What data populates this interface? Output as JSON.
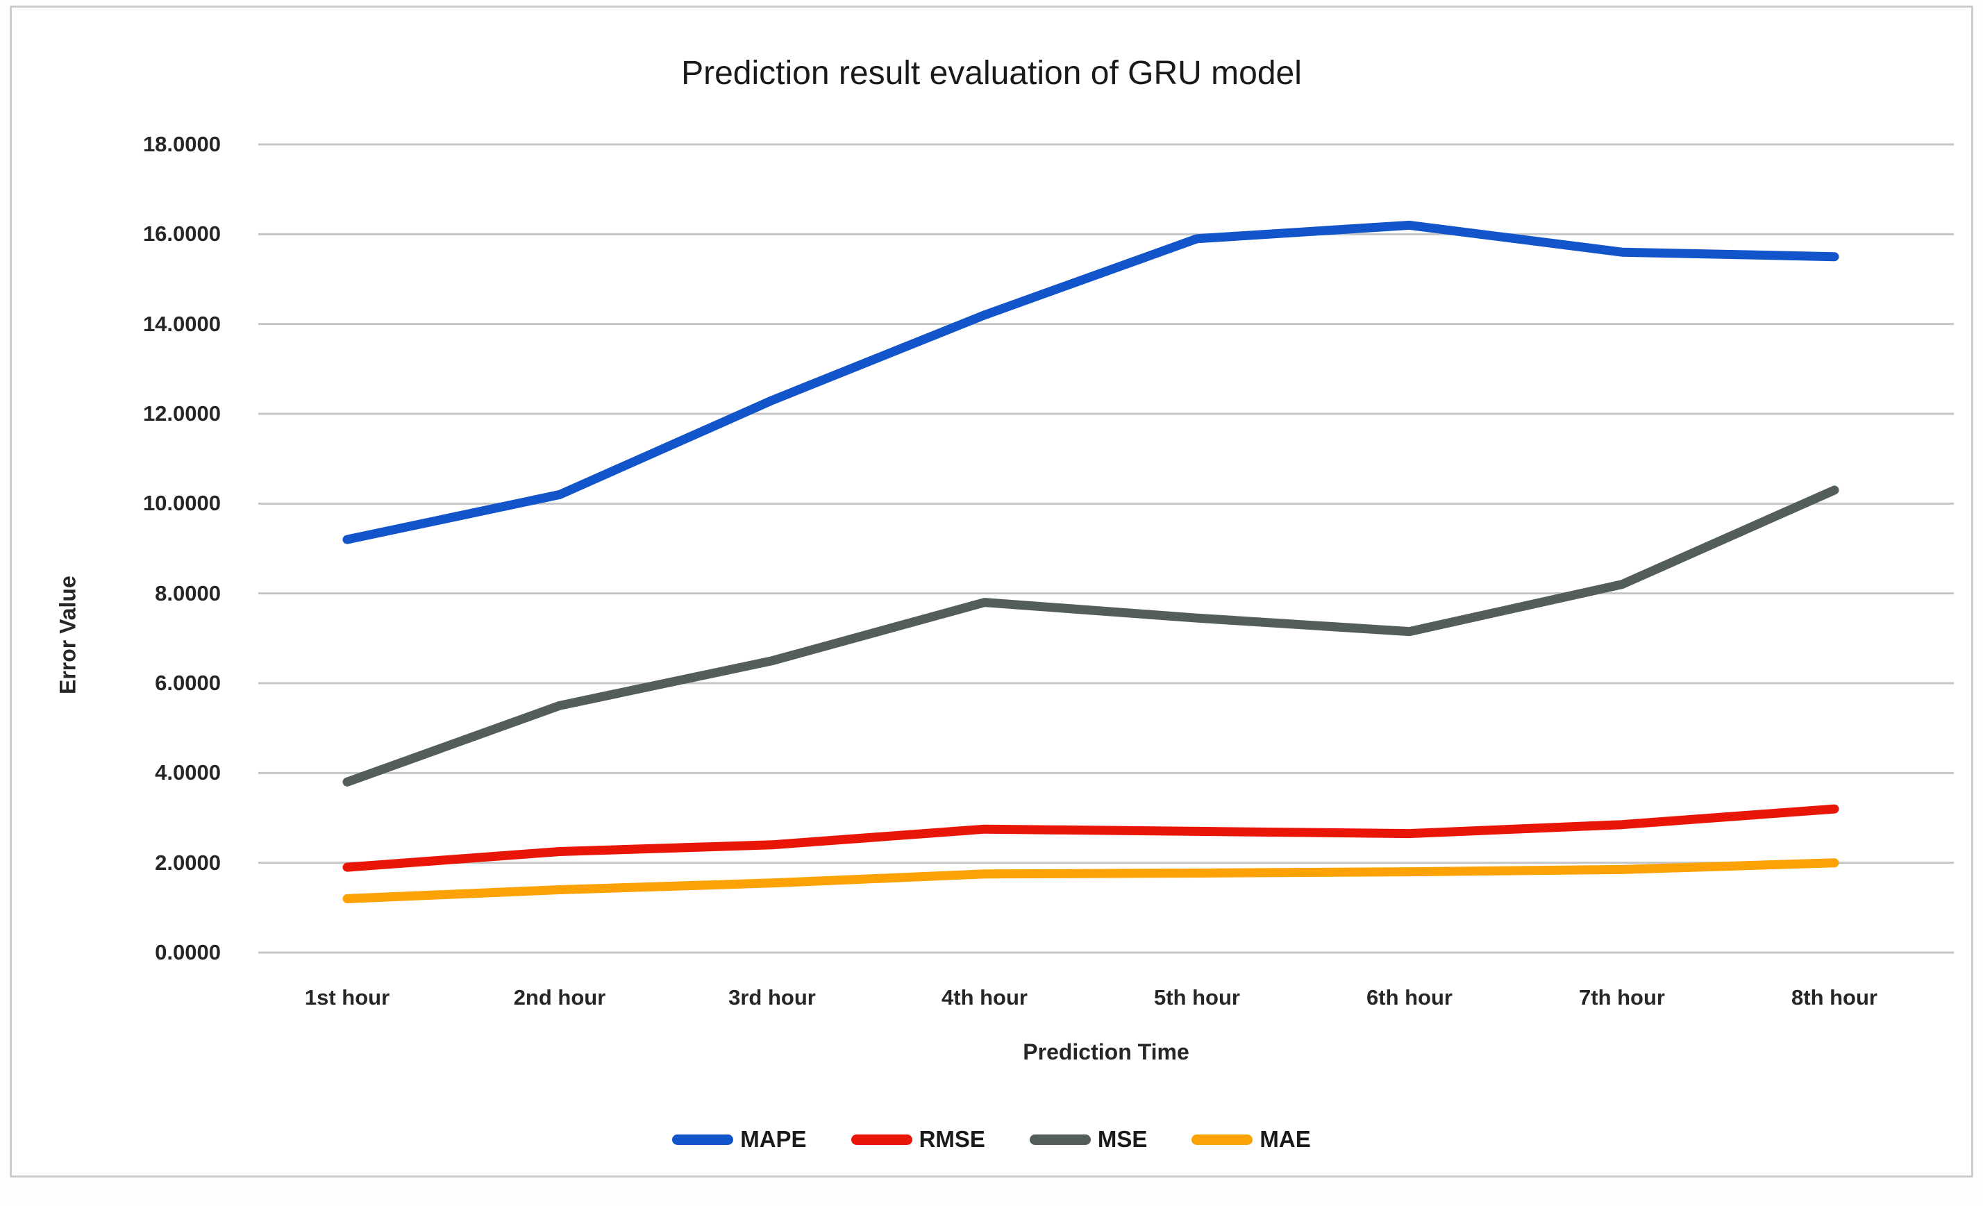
{
  "chart_data": {
    "type": "line",
    "title": "Prediction result evaluation of GRU model",
    "xlabel": "Prediction Time",
    "ylabel": "Error Value",
    "categories": [
      "1st hour",
      "2nd hour",
      "3rd hour",
      "4th hour",
      "5th hour",
      "6th hour",
      "7th hour",
      "8th hour"
    ],
    "series": [
      {
        "name": "MAPE",
        "color": "#1254CA",
        "values": [
          9.2,
          10.2,
          12.3,
          14.2,
          15.9,
          16.2,
          15.6,
          15.5
        ]
      },
      {
        "name": "RMSE",
        "color": "#E91506",
        "values": [
          1.9,
          2.25,
          2.4,
          2.75,
          2.7,
          2.65,
          2.85,
          3.2
        ]
      },
      {
        "name": "MSE",
        "color": "#545E59",
        "values": [
          3.8,
          5.5,
          6.5,
          7.8,
          7.45,
          7.15,
          8.2,
          10.3
        ]
      },
      {
        "name": "MAE",
        "color": "#FCA204",
        "values": [
          1.2,
          1.4,
          1.55,
          1.75,
          1.77,
          1.8,
          1.85,
          2.0
        ]
      }
    ],
    "ylim": [
      0,
      18
    ],
    "ytick_step": 2,
    "ytick_decimals": 4,
    "grid": "horizontal",
    "gridline_color": "#C4C6C8",
    "legend_position": "bottom"
  }
}
